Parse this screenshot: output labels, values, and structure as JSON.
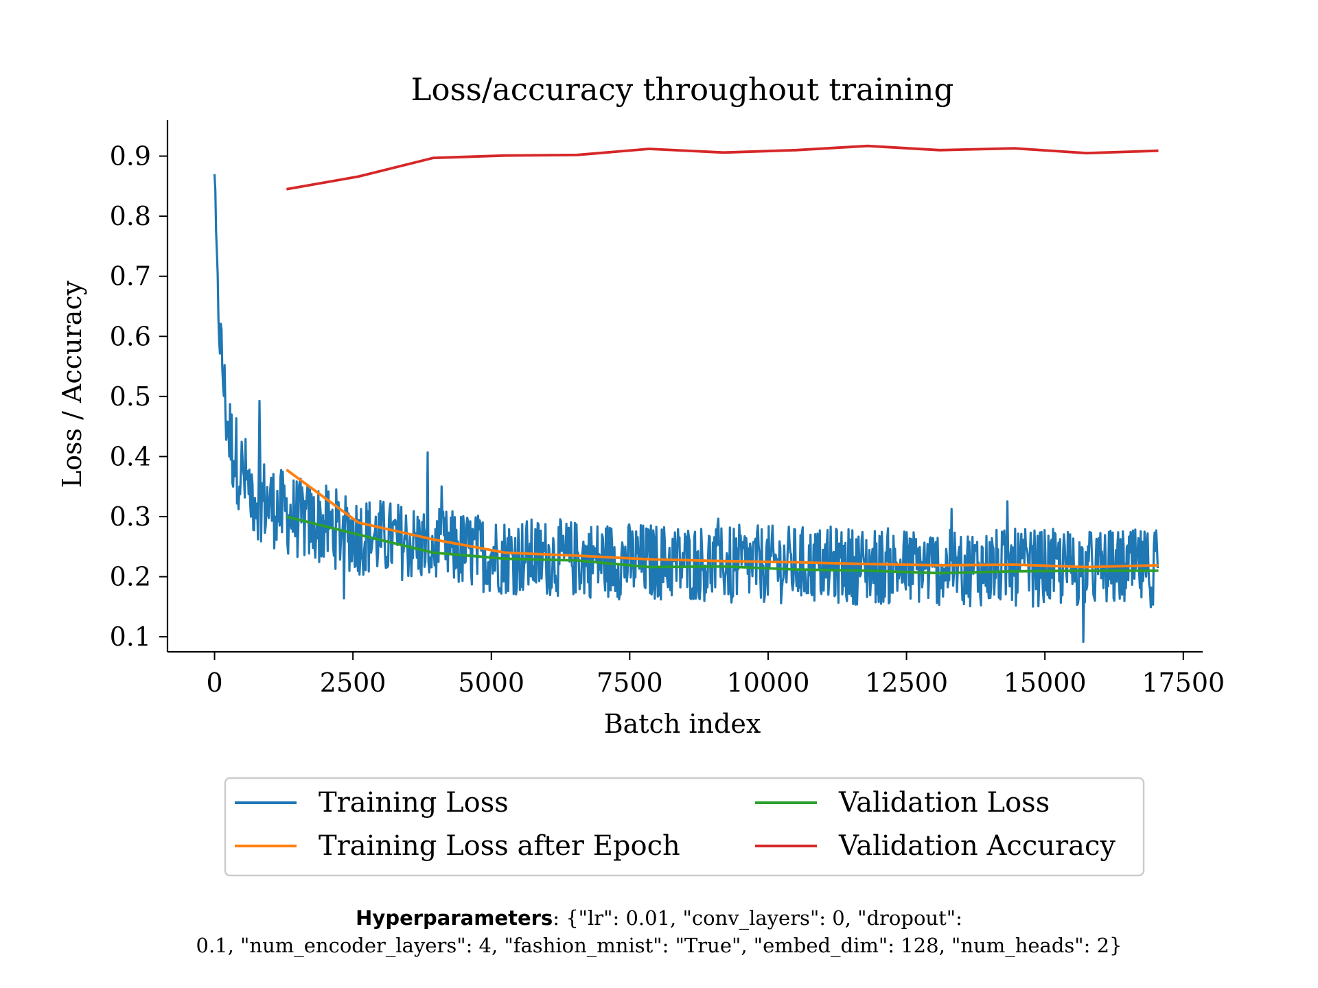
{
  "chart_data": {
    "type": "line",
    "title": "Loss/accuracy throughout training",
    "xlabel": "Batch index",
    "ylabel": "Loss / Accuracy",
    "xlim": [
      -850,
      17850
    ],
    "ylim": [
      0.075,
      0.96
    ],
    "x_ticks": [
      0,
      2500,
      5000,
      7500,
      10000,
      12500,
      15000,
      17500
    ],
    "x_tick_labels": [
      "0",
      "2500",
      "5000",
      "7500",
      "10000",
      "12500",
      "15000",
      "17500"
    ],
    "y_ticks": [
      0.1,
      0.2,
      0.3,
      0.4,
      0.5,
      0.6,
      0.7,
      0.8,
      0.9
    ],
    "y_tick_labels": [
      "0.1",
      "0.2",
      "0.3",
      "0.4",
      "0.5",
      "0.6",
      "0.7",
      "0.8",
      "0.9"
    ],
    "grid": false,
    "legend_position": "below-center",
    "series": [
      {
        "name": "Training Loss",
        "color": "#1f77b4",
        "style": "noisy",
        "x": [
          0,
          50,
          100,
          200,
          300,
          500,
          700,
          1000,
          1300,
          1700,
          2000,
          2600,
          3300,
          4000,
          5200,
          6500,
          7800,
          9200,
          10500,
          11800,
          13100,
          14500,
          15800,
          17050
        ],
        "center": [
          0.87,
          0.68,
          0.6,
          0.48,
          0.42,
          0.37,
          0.34,
          0.32,
          0.305,
          0.29,
          0.285,
          0.27,
          0.26,
          0.25,
          0.235,
          0.23,
          0.225,
          0.222,
          0.22,
          0.218,
          0.216,
          0.215,
          0.214,
          0.214
        ],
        "spread": [
          0.0,
          0.05,
          0.06,
          0.07,
          0.075,
          0.075,
          0.075,
          0.07,
          0.07,
          0.068,
          0.068,
          0.068,
          0.065,
          0.065,
          0.065,
          0.065,
          0.065,
          0.065,
          0.065,
          0.065,
          0.065,
          0.065,
          0.065,
          0.065
        ]
      },
      {
        "name": "Training Loss after Epoch",
        "color": "#ff7f0e",
        "x": [
          1300,
          2600,
          3950,
          5250,
          6550,
          7850,
          9200,
          10500,
          11800,
          13100,
          14450,
          15750,
          17050
        ],
        "y": [
          0.378,
          0.29,
          0.262,
          0.24,
          0.235,
          0.229,
          0.226,
          0.224,
          0.221,
          0.219,
          0.22,
          0.216,
          0.219
        ]
      },
      {
        "name": "Validation Loss",
        "color": "#2ca02c",
        "x": [
          1300,
          2600,
          3950,
          5250,
          6550,
          7850,
          9200,
          10500,
          11800,
          13100,
          14450,
          15750,
          17050
        ],
        "y": [
          0.3,
          0.27,
          0.24,
          0.23,
          0.227,
          0.216,
          0.217,
          0.212,
          0.21,
          0.206,
          0.209,
          0.21,
          0.21
        ]
      },
      {
        "name": "Validation Accuracy",
        "color": "#d62728",
        "x": [
          1300,
          2600,
          3950,
          5250,
          6550,
          7850,
          9200,
          10500,
          11800,
          13100,
          14450,
          15750,
          17050
        ],
        "y": [
          0.845,
          0.866,
          0.897,
          0.901,
          0.902,
          0.912,
          0.906,
          0.91,
          0.917,
          0.91,
          0.913,
          0.905,
          0.909
        ]
      }
    ]
  },
  "footnote": {
    "label": "Hyperparameters",
    "line1": ": {\"lr\": 0.01, \"conv_layers\": 0, \"dropout\":",
    "line2": "0.1, \"num_encoder_layers\": 4, \"fashion_mnist\": \"True\", \"embed_dim\": 128, \"num_heads\": 2}"
  }
}
